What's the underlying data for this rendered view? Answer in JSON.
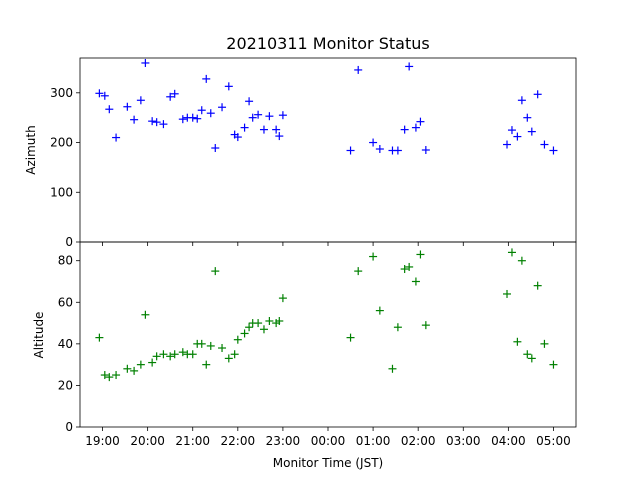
{
  "chart_data": {
    "type": "scatter",
    "title": "20210311 Monitor Status",
    "xlabel": "Monitor Time (JST)",
    "x_ticks": [
      "19:00",
      "20:00",
      "21:00",
      "22:00",
      "23:00",
      "00:00",
      "01:00",
      "02:00",
      "03:00",
      "04:00",
      "05:00"
    ],
    "x_tick_hours": [
      19,
      20,
      21,
      22,
      23,
      24,
      25,
      26,
      27,
      28,
      29
    ],
    "xlim_hours": [
      18.5,
      29.5
    ],
    "marker": "+",
    "panels": [
      {
        "name": "azimuth",
        "ylabel": "Azimuth",
        "ylim": [
          0,
          370
        ],
        "yticks": [
          0,
          100,
          200,
          300
        ],
        "color": "#0000ff",
        "points": [
          [
            18.93,
            299
          ],
          [
            19.05,
            294
          ],
          [
            19.15,
            267
          ],
          [
            19.3,
            210
          ],
          [
            19.55,
            272
          ],
          [
            19.7,
            246
          ],
          [
            19.85,
            285
          ],
          [
            19.95,
            360
          ],
          [
            20.1,
            243
          ],
          [
            20.2,
            241
          ],
          [
            20.35,
            237
          ],
          [
            20.5,
            292
          ],
          [
            20.6,
            298
          ],
          [
            20.78,
            247
          ],
          [
            20.88,
            250
          ],
          [
            21.0,
            250
          ],
          [
            21.1,
            248
          ],
          [
            21.2,
            265
          ],
          [
            21.3,
            328
          ],
          [
            21.4,
            259
          ],
          [
            21.5,
            189
          ],
          [
            21.65,
            271
          ],
          [
            21.8,
            313
          ],
          [
            21.93,
            216
          ],
          [
            22.0,
            211
          ],
          [
            22.15,
            230
          ],
          [
            22.25,
            283
          ],
          [
            22.33,
            250
          ],
          [
            22.45,
            256
          ],
          [
            22.58,
            226
          ],
          [
            22.7,
            253
          ],
          [
            22.85,
            226
          ],
          [
            22.92,
            213
          ],
          [
            23.0,
            255
          ],
          [
            24.5,
            184
          ],
          [
            24.67,
            346
          ],
          [
            25.0,
            200
          ],
          [
            25.15,
            187
          ],
          [
            25.43,
            184
          ],
          [
            25.55,
            184
          ],
          [
            25.7,
            226
          ],
          [
            25.8,
            353
          ],
          [
            25.95,
            230
          ],
          [
            26.05,
            242
          ],
          [
            26.17,
            185
          ],
          [
            27.97,
            196
          ],
          [
            28.08,
            225
          ],
          [
            28.2,
            212
          ],
          [
            28.3,
            285
          ],
          [
            28.42,
            250
          ],
          [
            28.52,
            222
          ],
          [
            28.65,
            297
          ],
          [
            28.8,
            196
          ],
          [
            29.0,
            184
          ]
        ]
      },
      {
        "name": "altitude",
        "ylabel": "Altitude",
        "ylim": [
          0,
          89
        ],
        "yticks": [
          0,
          20,
          40,
          60,
          80
        ],
        "color": "#008000",
        "points": [
          [
            18.93,
            43
          ],
          [
            19.05,
            25
          ],
          [
            19.15,
            24
          ],
          [
            19.3,
            25
          ],
          [
            19.55,
            28
          ],
          [
            19.7,
            27
          ],
          [
            19.85,
            30
          ],
          [
            19.95,
            54
          ],
          [
            20.1,
            31
          ],
          [
            20.2,
            34
          ],
          [
            20.35,
            35
          ],
          [
            20.5,
            34
          ],
          [
            20.6,
            35
          ],
          [
            20.78,
            36
          ],
          [
            20.88,
            35
          ],
          [
            21.0,
            35
          ],
          [
            21.1,
            40
          ],
          [
            21.2,
            40
          ],
          [
            21.3,
            30
          ],
          [
            21.4,
            39
          ],
          [
            21.5,
            75
          ],
          [
            21.65,
            38
          ],
          [
            21.8,
            33
          ],
          [
            21.93,
            35
          ],
          [
            22.0,
            42
          ],
          [
            22.15,
            45
          ],
          [
            22.25,
            48
          ],
          [
            22.33,
            50
          ],
          [
            22.45,
            50
          ],
          [
            22.58,
            47
          ],
          [
            22.7,
            51
          ],
          [
            22.85,
            50
          ],
          [
            22.92,
            51
          ],
          [
            23.0,
            62
          ],
          [
            24.5,
            43
          ],
          [
            24.67,
            75
          ],
          [
            25.0,
            82
          ],
          [
            25.15,
            56
          ],
          [
            25.43,
            28
          ],
          [
            25.55,
            48
          ],
          [
            25.7,
            76
          ],
          [
            25.8,
            77
          ],
          [
            25.95,
            70
          ],
          [
            26.05,
            83
          ],
          [
            26.17,
            49
          ],
          [
            27.97,
            64
          ],
          [
            28.08,
            84
          ],
          [
            28.2,
            41
          ],
          [
            28.3,
            80
          ],
          [
            28.42,
            35
          ],
          [
            28.52,
            33
          ],
          [
            28.65,
            68
          ],
          [
            28.8,
            40
          ],
          [
            29.0,
            30
          ]
        ]
      }
    ]
  }
}
